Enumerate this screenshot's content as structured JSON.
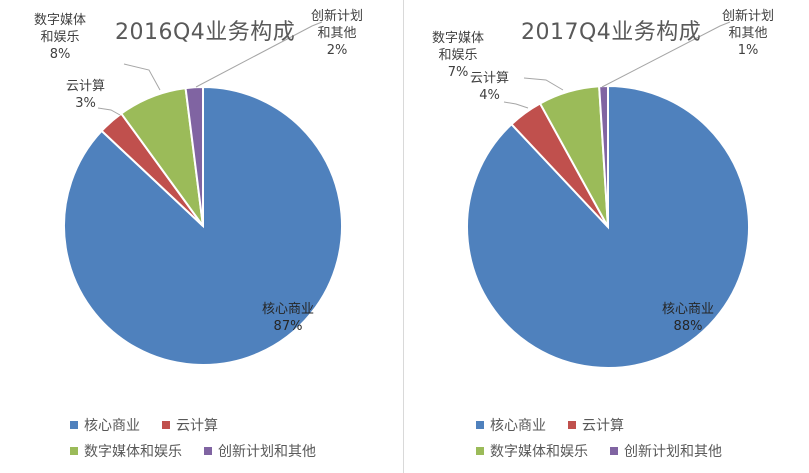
{
  "chart_data": [
    {
      "type": "pie",
      "title": "2016Q4业务构成",
      "categories": [
        "核心商业",
        "云计算",
        "数字媒体和娱乐",
        "创新计划和其他"
      ],
      "values": [
        87,
        3,
        8,
        2
      ],
      "data_labels": [
        {
          "name": "核心商业",
          "pct": "87%"
        },
        {
          "name": "云计算",
          "pct": "3%"
        },
        {
          "name": "数字媒体\n和娱乐",
          "pct": "8%"
        },
        {
          "name": "创新计划\n和其他",
          "pct": "2%"
        }
      ],
      "legend": {
        "placement": "bottom",
        "entries": [
          "核心商业",
          "云计算",
          "数字媒体和娱乐",
          "创新计划和其他"
        ]
      }
    },
    {
      "type": "pie",
      "title": "2017Q4业务构成",
      "categories": [
        "核心商业",
        "云计算",
        "数字媒体和娱乐",
        "创新计划和其他"
      ],
      "values": [
        88,
        4,
        7,
        1
      ],
      "data_labels": [
        {
          "name": "核心商业",
          "pct": "88%"
        },
        {
          "name": "云计算",
          "pct": "4%"
        },
        {
          "name": "数字媒体\n和娱乐",
          "pct": "7%"
        },
        {
          "name": "创新计划\n和其他",
          "pct": "1%"
        }
      ],
      "legend": {
        "placement": "bottom",
        "entries": [
          "核心商业",
          "云计算",
          "数字媒体和娱乐",
          "创新计划和其他"
        ]
      }
    }
  ],
  "colors": [
    "#4f81bd",
    "#c0504d",
    "#9bbb59",
    "#8064a2"
  ]
}
